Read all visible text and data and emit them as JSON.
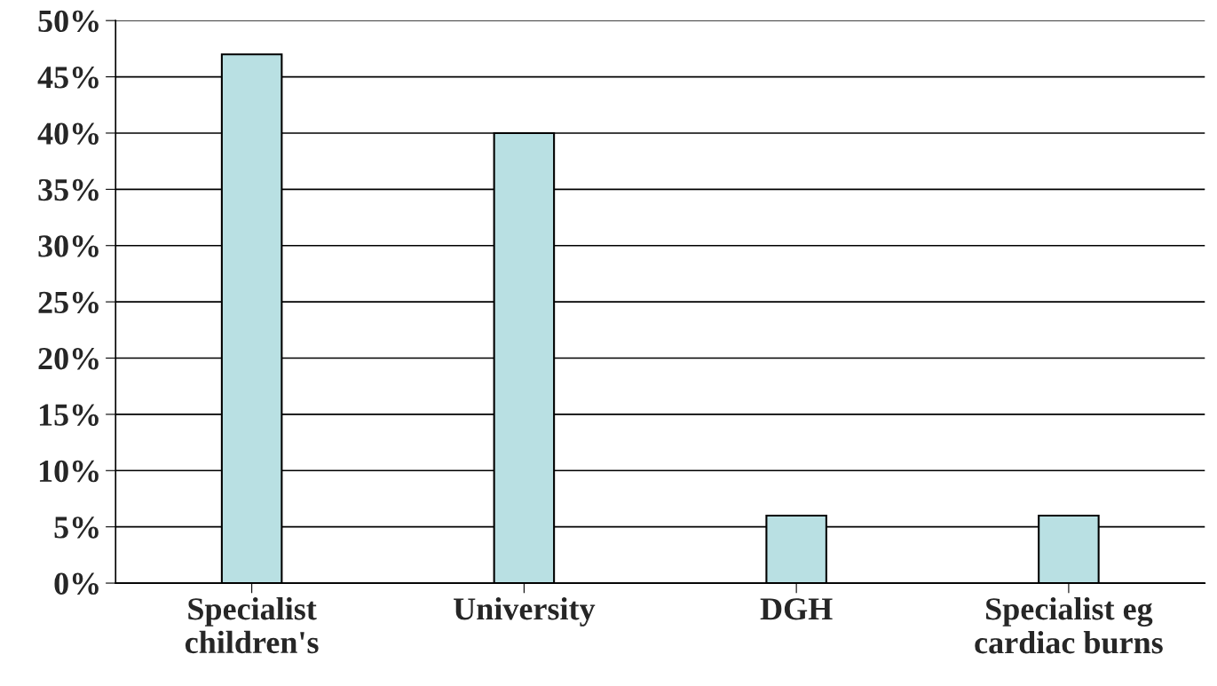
{
  "chart_data": {
    "type": "bar",
    "categories": [
      "Specialist\nchildren's",
      "University",
      "DGH",
      "Specialist eg\ncardiac burns"
    ],
    "values": [
      47,
      40,
      6,
      6
    ],
    "color": "#b9e0e3",
    "ylim": [
      0,
      50
    ],
    "yticks": [
      {
        "value": 0,
        "label": "0%"
      },
      {
        "value": 5,
        "label": "5%"
      },
      {
        "value": 10,
        "label": "10%"
      },
      {
        "value": 15,
        "label": "15%"
      },
      {
        "value": 20,
        "label": "20%"
      },
      {
        "value": 25,
        "label": "25%"
      },
      {
        "value": 30,
        "label": "30%"
      },
      {
        "value": 35,
        "label": "35%"
      },
      {
        "value": 40,
        "label": "40%"
      },
      {
        "value": 45,
        "label": "45%"
      },
      {
        "value": 50,
        "label": "50%"
      }
    ],
    "grid": "y"
  }
}
